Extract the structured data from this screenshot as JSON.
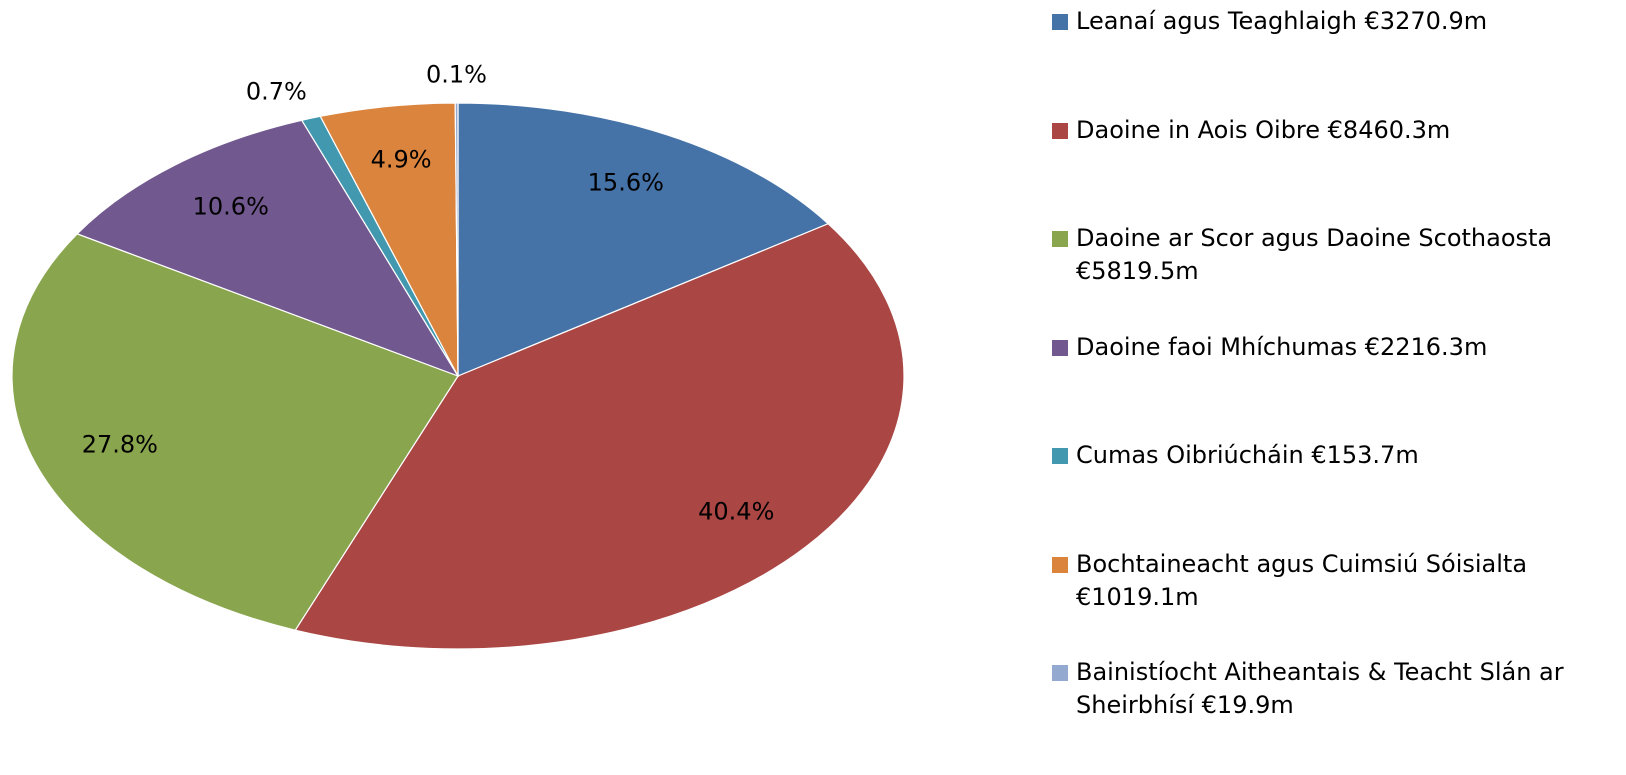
{
  "chart_data": {
    "type": "pie",
    "categories": [
      "Leanaí agus Teaghlaigh €3270.9m",
      "Daoine in Aois Oibre €8460.3m",
      "Daoine ar Scor agus Daoine Scothaosta €5819.5m",
      "Daoine faoi Mhíchumas €2216.3m",
      "Cumas Oibriúcháin €153.7m",
      "Bochtaineacht agus Cuimsiú Sóisialta €1019.1m",
      "Bainistíocht Aitheantais & Teacht Slán ar Sheirbhísí €19.9m"
    ],
    "values": [
      15.6,
      40.4,
      27.8,
      10.6,
      0.7,
      4.9,
      0.1
    ],
    "value_labels": [
      "15.6%",
      "40.4%",
      "27.8%",
      "10.6%",
      "0.7%",
      "4.9%",
      "0.1%"
    ],
    "colors": [
      "#4572a7",
      "#aa4643",
      "#89a54e",
      "#71588f",
      "#4198af",
      "#db843d",
      "#93a9cf"
    ],
    "legend": "right"
  }
}
